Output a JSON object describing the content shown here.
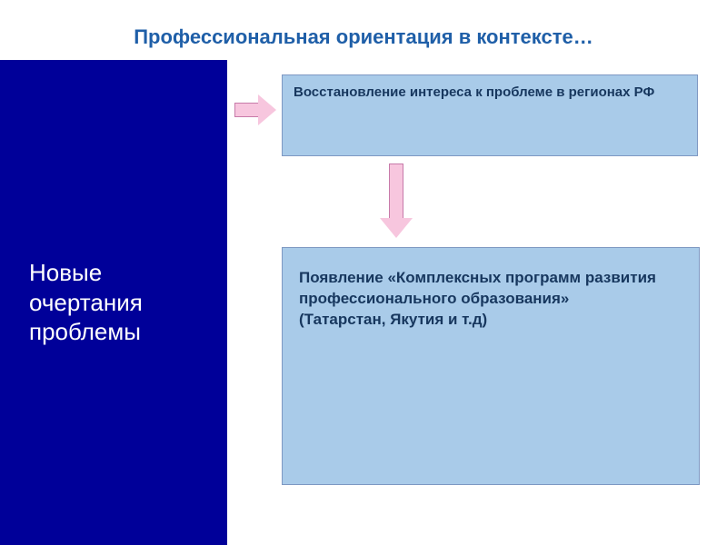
{
  "title": {
    "text": "Профессиональная ориентация в контексте…",
    "color": "#1f5fa8",
    "fontsize": 22
  },
  "left_panel": {
    "text": "Новые очертания проблемы",
    "background": "#000099",
    "text_color": "#ffffff",
    "fontsize": 26
  },
  "box_top": {
    "text": "Восстановление интереса к проблеме в регионах РФ",
    "background": "#a9cbe9",
    "text_color": "#17375e",
    "fontsize": 15
  },
  "box_bottom": {
    "text": "Появление «Комплексных программ развития профессионального образования»\n(Татарстан, Якутия и т.д)",
    "background": "#a9cbe9",
    "text_color": "#17375e",
    "fontsize": 17
  },
  "arrows": {
    "fill": "#f7c6de",
    "stroke": "#c77aa9"
  }
}
